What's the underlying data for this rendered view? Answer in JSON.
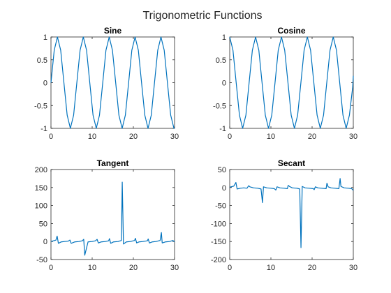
{
  "figure": {
    "suptitle": "Trigonometric Functions",
    "line_color": "#0072BD"
  },
  "chart_data": [
    {
      "type": "line",
      "title": "Sine",
      "xlim": [
        0,
        30
      ],
      "ylim": [
        -1,
        1
      ],
      "xticks": [
        0,
        10,
        20,
        30
      ],
      "yticks": [
        -1,
        -0.5,
        0,
        0.5,
        1
      ],
      "xtick_labels": [
        "0",
        "10",
        "20",
        "30"
      ],
      "ytick_labels": [
        "-1",
        "-0.5",
        "0",
        "0.5",
        "1"
      ],
      "series": [
        {
          "x": [
            0,
            0.79,
            1.57,
            2.36,
            3.14,
            3.93,
            4.71,
            5.5,
            6.28,
            7.07,
            7.85,
            8.64,
            9.42,
            10.21,
            11,
            11.78,
            12.57,
            13.35,
            14.14,
            14.92,
            15.71,
            16.49,
            17.28,
            18.06,
            18.85,
            19.63,
            20.42,
            21.21,
            21.99,
            22.78,
            23.56,
            24.35,
            25.13,
            25.92,
            26.7,
            27.49,
            28.27,
            29.06,
            29.85,
            30
          ],
          "y": [
            0,
            0.71,
            1,
            0.71,
            0,
            -0.71,
            -1,
            -0.71,
            0,
            0.71,
            1,
            0.71,
            0,
            -0.71,
            -1,
            -0.71,
            0,
            0.71,
            1,
            0.71,
            0,
            -0.71,
            -1,
            -0.71,
            0,
            0.71,
            1,
            0.71,
            0,
            -0.71,
            -1,
            -0.71,
            0,
            0.71,
            1,
            0.71,
            0,
            -0.71,
            -1,
            -0.99
          ]
        }
      ]
    },
    {
      "type": "line",
      "title": "Cosine",
      "xlim": [
        0,
        30
      ],
      "ylim": [
        -1,
        1
      ],
      "xticks": [
        0,
        10,
        20,
        30
      ],
      "yticks": [
        -1,
        -0.5,
        0,
        0.5,
        1
      ],
      "xtick_labels": [
        "0",
        "10",
        "20",
        "30"
      ],
      "ytick_labels": [
        "-1",
        "-0.5",
        "0",
        "0.5",
        "1"
      ],
      "series": [
        {
          "x": [
            0,
            0.79,
            1.57,
            2.36,
            3.14,
            3.93,
            4.71,
            5.5,
            6.28,
            7.07,
            7.85,
            8.64,
            9.42,
            10.21,
            11,
            11.78,
            12.57,
            13.35,
            14.14,
            14.92,
            15.71,
            16.49,
            17.28,
            18.06,
            18.85,
            19.63,
            20.42,
            21.21,
            21.99,
            22.78,
            23.56,
            24.35,
            25.13,
            25.92,
            26.7,
            27.49,
            28.27,
            29.06,
            29.85,
            30
          ],
          "y": [
            1,
            0.71,
            0,
            -0.71,
            -1,
            -0.71,
            0,
            0.71,
            1,
            0.71,
            0,
            -0.71,
            -1,
            -0.71,
            0,
            0.71,
            1,
            0.71,
            0,
            -0.71,
            -1,
            -0.71,
            0,
            0.71,
            1,
            0.71,
            0,
            -0.71,
            -1,
            -0.71,
            0,
            0.71,
            1,
            0.71,
            0,
            -0.71,
            -1,
            -0.71,
            -0.1,
            0.15
          ]
        }
      ]
    },
    {
      "type": "line",
      "title": "Tangent",
      "xlim": [
        0,
        30
      ],
      "ylim": [
        -50,
        200
      ],
      "xticks": [
        0,
        10,
        20,
        30
      ],
      "yticks": [
        -50,
        0,
        50,
        100,
        150,
        200
      ],
      "xtick_labels": [
        "0",
        "10",
        "20",
        "30"
      ],
      "ytick_labels": [
        "-50",
        "0",
        "50",
        "100",
        "150",
        "200"
      ],
      "series": [
        {
          "x": [
            0,
            1.2,
            1.5,
            1.8,
            2.5,
            3.3,
            4.2,
            4.6,
            4.9,
            5.8,
            6.8,
            7.6,
            7.95,
            8.2,
            9.0,
            10.0,
            10.8,
            11.2,
            11.5,
            12.2,
            13.2,
            14.0,
            14.2,
            14.5,
            15.2,
            16.3,
            17.1,
            17.3,
            17.6,
            18.3,
            19.3,
            20.3,
            20.5,
            20.8,
            21.4,
            22.3,
            23.4,
            23.6,
            23.9,
            24.6,
            25.5,
            26.5,
            26.8,
            27.0,
            27.8,
            28.8,
            29.6,
            30
          ],
          "y": [
            0,
            4,
            15,
            -5,
            -1,
            0,
            1,
            4,
            -5,
            -1,
            0,
            2,
            6,
            -38,
            -1,
            0,
            2,
            6,
            -4,
            -1,
            0,
            2,
            8,
            -5,
            -1,
            0,
            3,
            165,
            -7,
            -1,
            0,
            3,
            9,
            -4,
            -1,
            0,
            2,
            7,
            -4,
            -1,
            0,
            3,
            25,
            -4,
            -1,
            0,
            3,
            -1
          ]
        }
      ]
    },
    {
      "type": "line",
      "title": "Secant",
      "xlim": [
        0,
        30
      ],
      "ylim": [
        -200,
        50
      ],
      "xticks": [
        0,
        10,
        20,
        30
      ],
      "yticks": [
        -200,
        -150,
        -100,
        -50,
        0,
        50
      ],
      "xtick_labels": [
        "0",
        "10",
        "20",
        "30"
      ],
      "ytick_labels": [
        "-200",
        "-150",
        "-100",
        "-50",
        "0",
        "50"
      ],
      "series": [
        {
          "x": [
            0,
            1.0,
            1.5,
            1.8,
            2.6,
            3.4,
            4.2,
            4.6,
            4.9,
            5.8,
            6.8,
            7.6,
            7.95,
            8.2,
            9.0,
            10.0,
            10.8,
            11.2,
            11.5,
            12.2,
            13.2,
            14.0,
            14.2,
            14.5,
            15.2,
            16.3,
            17.0,
            17.3,
            17.6,
            18.3,
            19.3,
            20.3,
            20.5,
            20.8,
            21.4,
            22.3,
            23.4,
            23.6,
            23.9,
            24.6,
            25.5,
            26.5,
            26.8,
            27.0,
            27.8,
            28.8,
            29.6,
            30
          ],
          "y": [
            1,
            4,
            14,
            -4,
            -2,
            -1,
            -2,
            5,
            2,
            -1,
            -2,
            -4,
            -42,
            2,
            -1,
            -2,
            -3,
            -7,
            2,
            -1,
            -2,
            -3,
            6,
            3,
            -1,
            -2,
            -4,
            -167,
            3,
            -1,
            -2,
            -3,
            -6,
            2,
            -1,
            -2,
            -3,
            12,
            2,
            -1,
            -2,
            -3,
            25,
            3,
            -1,
            -2,
            -3,
            -8
          ]
        }
      ]
    }
  ]
}
